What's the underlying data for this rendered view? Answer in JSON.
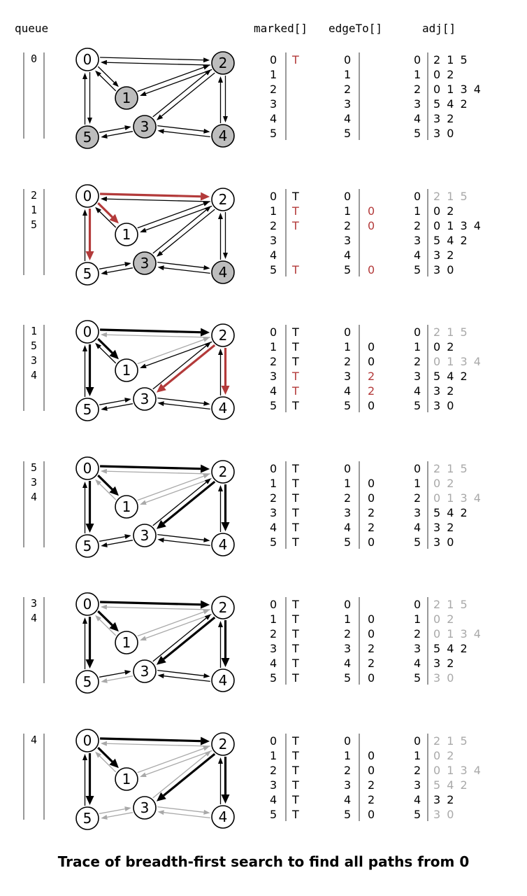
{
  "headers": {
    "queue": "queue",
    "marked": "marked[]",
    "edgeTo": "edgeTo[]",
    "adj": "adj[]"
  },
  "colors": {
    "red": "#b33a3a",
    "gray": "#a9a9a9",
    "black": "#000000",
    "node_fill_visited": "#bdbdbd"
  },
  "caption": "Trace of breadth-first search to find all paths from 0",
  "steps": [
    {
      "queue": [
        "0"
      ],
      "marked": [
        {
          "v": "0",
          "m": "T",
          "c": "red"
        },
        {
          "v": "1",
          "m": ""
        },
        {
          "v": "2",
          "m": ""
        },
        {
          "v": "3",
          "m": ""
        },
        {
          "v": "4",
          "m": ""
        },
        {
          "v": "5",
          "m": ""
        }
      ],
      "edgeTo": [
        {
          "v": "0",
          "e": ""
        },
        {
          "v": "1",
          "e": ""
        },
        {
          "v": "2",
          "e": ""
        },
        {
          "v": "3",
          "e": ""
        },
        {
          "v": "4",
          "e": ""
        },
        {
          "v": "5",
          "e": ""
        }
      ],
      "adj": [
        {
          "v": "0",
          "l": "2 1 5",
          "g": false
        },
        {
          "v": "1",
          "l": "0 2",
          "g": false
        },
        {
          "v": "2",
          "l": "0 1 3 4",
          "g": false
        },
        {
          "v": "3",
          "l": "5 4 2",
          "g": false
        },
        {
          "v": "4",
          "l": "3 2",
          "g": false
        },
        {
          "v": "5",
          "l": "3 0",
          "g": false
        }
      ],
      "gray_nodes": [
        "1",
        "2",
        "3",
        "4",
        "5"
      ]
    },
    {
      "queue": [
        "2",
        "1",
        "5"
      ],
      "marked": [
        {
          "v": "0",
          "m": "T"
        },
        {
          "v": "1",
          "m": "T",
          "c": "red"
        },
        {
          "v": "2",
          "m": "T",
          "c": "red"
        },
        {
          "v": "3",
          "m": ""
        },
        {
          "v": "4",
          "m": ""
        },
        {
          "v": "5",
          "m": "T",
          "c": "red"
        }
      ],
      "edgeTo": [
        {
          "v": "0",
          "e": ""
        },
        {
          "v": "1",
          "e": "0",
          "c": "red"
        },
        {
          "v": "2",
          "e": "0",
          "c": "red"
        },
        {
          "v": "3",
          "e": ""
        },
        {
          "v": "4",
          "e": ""
        },
        {
          "v": "5",
          "e": "0",
          "c": "red"
        }
      ],
      "adj": [
        {
          "v": "0",
          "l": "2 1 5",
          "g": true
        },
        {
          "v": "1",
          "l": "0 2",
          "g": false
        },
        {
          "v": "2",
          "l": "0 1 3 4",
          "g": false
        },
        {
          "v": "3",
          "l": "5 4 2",
          "g": false
        },
        {
          "v": "4",
          "l": "3 2",
          "g": false
        },
        {
          "v": "5",
          "l": "3 0",
          "g": false
        }
      ],
      "gray_nodes": [
        "3",
        "4"
      ]
    },
    {
      "queue": [
        "1",
        "5",
        "3",
        "4"
      ],
      "marked": [
        {
          "v": "0",
          "m": "T"
        },
        {
          "v": "1",
          "m": "T"
        },
        {
          "v": "2",
          "m": "T"
        },
        {
          "v": "3",
          "m": "T",
          "c": "red"
        },
        {
          "v": "4",
          "m": "T",
          "c": "red"
        },
        {
          "v": "5",
          "m": "T"
        }
      ],
      "edgeTo": [
        {
          "v": "0",
          "e": ""
        },
        {
          "v": "1",
          "e": "0"
        },
        {
          "v": "2",
          "e": "0"
        },
        {
          "v": "3",
          "e": "2",
          "c": "red"
        },
        {
          "v": "4",
          "e": "2",
          "c": "red"
        },
        {
          "v": "5",
          "e": "0"
        }
      ],
      "adj": [
        {
          "v": "0",
          "l": "2 1 5",
          "g": true
        },
        {
          "v": "1",
          "l": "0 2",
          "g": false
        },
        {
          "v": "2",
          "l": "0 1 3 4",
          "g": true
        },
        {
          "v": "3",
          "l": "5 4 2",
          "g": false
        },
        {
          "v": "4",
          "l": "3 2",
          "g": false
        },
        {
          "v": "5",
          "l": "3 0",
          "g": false
        }
      ],
      "gray_nodes": []
    },
    {
      "queue": [
        "5",
        "3",
        "4"
      ],
      "marked": [
        {
          "v": "0",
          "m": "T"
        },
        {
          "v": "1",
          "m": "T"
        },
        {
          "v": "2",
          "m": "T"
        },
        {
          "v": "3",
          "m": "T"
        },
        {
          "v": "4",
          "m": "T"
        },
        {
          "v": "5",
          "m": "T"
        }
      ],
      "edgeTo": [
        {
          "v": "0",
          "e": ""
        },
        {
          "v": "1",
          "e": "0"
        },
        {
          "v": "2",
          "e": "0"
        },
        {
          "v": "3",
          "e": "2"
        },
        {
          "v": "4",
          "e": "2"
        },
        {
          "v": "5",
          "e": "0"
        }
      ],
      "adj": [
        {
          "v": "0",
          "l": "2 1 5",
          "g": true
        },
        {
          "v": "1",
          "l": "0 2",
          "g": true
        },
        {
          "v": "2",
          "l": "0 1 3 4",
          "g": true
        },
        {
          "v": "3",
          "l": "5 4 2",
          "g": false
        },
        {
          "v": "4",
          "l": "3 2",
          "g": false
        },
        {
          "v": "5",
          "l": "3 0",
          "g": false
        }
      ],
      "gray_nodes": []
    },
    {
      "queue": [
        "3",
        "4"
      ],
      "marked": [
        {
          "v": "0",
          "m": "T"
        },
        {
          "v": "1",
          "m": "T"
        },
        {
          "v": "2",
          "m": "T"
        },
        {
          "v": "3",
          "m": "T"
        },
        {
          "v": "4",
          "m": "T"
        },
        {
          "v": "5",
          "m": "T"
        }
      ],
      "edgeTo": [
        {
          "v": "0",
          "e": ""
        },
        {
          "v": "1",
          "e": "0"
        },
        {
          "v": "2",
          "e": "0"
        },
        {
          "v": "3",
          "e": "2"
        },
        {
          "v": "4",
          "e": "2"
        },
        {
          "v": "5",
          "e": "0"
        }
      ],
      "adj": [
        {
          "v": "0",
          "l": "2 1 5",
          "g": true
        },
        {
          "v": "1",
          "l": "0 2",
          "g": true
        },
        {
          "v": "2",
          "l": "0 1 3 4",
          "g": true
        },
        {
          "v": "3",
          "l": "5 4 2",
          "g": false
        },
        {
          "v": "4",
          "l": "3 2",
          "g": false
        },
        {
          "v": "5",
          "l": "3 0",
          "g": true
        }
      ],
      "gray_nodes": []
    },
    {
      "queue": [
        "4"
      ],
      "marked": [
        {
          "v": "0",
          "m": "T"
        },
        {
          "v": "1",
          "m": "T"
        },
        {
          "v": "2",
          "m": "T"
        },
        {
          "v": "3",
          "m": "T"
        },
        {
          "v": "4",
          "m": "T"
        },
        {
          "v": "5",
          "m": "T"
        }
      ],
      "edgeTo": [
        {
          "v": "0",
          "e": ""
        },
        {
          "v": "1",
          "e": "0"
        },
        {
          "v": "2",
          "e": "0"
        },
        {
          "v": "3",
          "e": "2"
        },
        {
          "v": "4",
          "e": "2"
        },
        {
          "v": "5",
          "e": "0"
        }
      ],
      "adj": [
        {
          "v": "0",
          "l": "2 1 5",
          "g": true
        },
        {
          "v": "1",
          "l": "0 2",
          "g": true
        },
        {
          "v": "2",
          "l": "0 1 3 4",
          "g": true
        },
        {
          "v": "3",
          "l": "5 4 2",
          "g": true
        },
        {
          "v": "4",
          "l": "3 2",
          "g": false
        },
        {
          "v": "5",
          "l": "3 0",
          "g": true
        }
      ],
      "gray_nodes": []
    }
  ],
  "edges": [
    {
      "from": "2",
      "to": "0",
      "pairs": [
        [
          "n",
          "n",
          "n",
          "n",
          "n",
          "n"
        ]
      ]
    },
    {
      "key": "0-2",
      "styles": [
        "n",
        "rfwd",
        "bfwd",
        "bfwd",
        "bfwd",
        "bfwd"
      ],
      "back": [
        "n",
        "n",
        "g",
        "g",
        "g",
        "g"
      ]
    },
    {
      "key": "0-1",
      "styles": [
        "n",
        "rfwd",
        "bfwd",
        "bfwd",
        "bfwd",
        "bfwd"
      ],
      "back": [
        "n",
        "n",
        "n",
        "g",
        "g",
        "g"
      ]
    },
    {
      "key": "0-5",
      "styles": [
        "n",
        "rfwd",
        "bfwd",
        "bfwd",
        "bfwd",
        "bfwd"
      ],
      "back": [
        "n",
        "n",
        "n",
        "n",
        "n",
        "n"
      ]
    },
    {
      "key": "1-2",
      "styles": [
        "n",
        "n",
        "g",
        "g",
        "g",
        "g"
      ],
      "back": [
        "n",
        "n",
        "n",
        "g",
        "g",
        "g"
      ]
    },
    {
      "key": "2-3",
      "styles": [
        "n",
        "n",
        "rfwd",
        "bfwd",
        "bfwd",
        "bfwd"
      ],
      "back": [
        "n",
        "n",
        "n",
        "n",
        "n",
        "g"
      ]
    },
    {
      "key": "2-4",
      "styles": [
        "n",
        "n",
        "rfwd",
        "bfwd",
        "bfwd",
        "bfwd"
      ],
      "back": [
        "n",
        "n",
        "n",
        "n",
        "n",
        "n"
      ]
    },
    {
      "key": "3-5",
      "styles": [
        "n",
        "n",
        "n",
        "n",
        "g",
        "g"
      ],
      "back": [
        "n",
        "n",
        "n",
        "n",
        "n",
        "g"
      ]
    },
    {
      "key": "3-4",
      "styles": [
        "n",
        "n",
        "n",
        "n",
        "n",
        "g"
      ],
      "back": [
        "n",
        "n",
        "n",
        "n",
        "n",
        "g"
      ]
    }
  ]
}
